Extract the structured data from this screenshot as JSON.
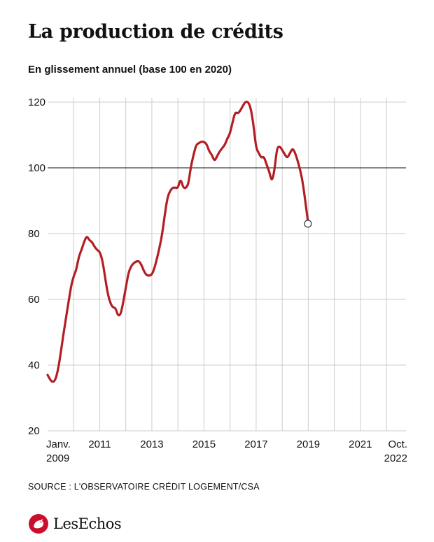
{
  "title": "La production de crédits",
  "subtitle": "En glissement annuel (base 100 en 2020)",
  "source": "SOURCE : L'OBSERVATOIRE CRÉDIT LOGEMENT/CSA",
  "brand": "LesEchos",
  "colors": {
    "line": "#b31e23",
    "grid": "#cccccc",
    "baseline": "#111111",
    "brand_red": "#c8102e"
  },
  "chart_data": {
    "type": "line",
    "title": "La production de crédits",
    "ylabel": "",
    "xlabel": "",
    "ylim": [
      20,
      120
    ],
    "xlim": [
      2009.0,
      2022.75
    ],
    "y_ticks": [
      20,
      40,
      60,
      80,
      100,
      120
    ],
    "reference_line": 100,
    "x_ticks": [
      {
        "x": 2009.0,
        "label": "Janv.",
        "label2": "2009"
      },
      {
        "x": 2011.0,
        "label": "2011",
        "label2": ""
      },
      {
        "x": 2013.0,
        "label": "2013",
        "label2": ""
      },
      {
        "x": 2015.0,
        "label": "2015",
        "label2": ""
      },
      {
        "x": 2017.0,
        "label": "2017",
        "label2": ""
      },
      {
        "x": 2019.0,
        "label": "2019",
        "label2": ""
      },
      {
        "x": 2021.0,
        "label": "2021",
        "label2": ""
      },
      {
        "x": 2022.75,
        "label": "Oct.",
        "label2": "2022"
      }
    ],
    "grid_x": [
      2010.0,
      2011.0,
      2012.0,
      2013.0,
      2014.0,
      2015.0,
      2016.0,
      2017.0,
      2018.0,
      2019.0,
      2020.0,
      2021.0,
      2022.0
    ],
    "series": [
      {
        "values": [
          [
            2009.0,
            37
          ],
          [
            2009.1,
            35.5
          ],
          [
            2009.2,
            34.7
          ],
          [
            2009.3,
            35.5
          ],
          [
            2009.4,
            38.5
          ],
          [
            2009.5,
            43.5
          ],
          [
            2009.6,
            49
          ],
          [
            2009.7,
            54
          ],
          [
            2009.8,
            59
          ],
          [
            2009.9,
            64
          ],
          [
            2010.0,
            67
          ],
          [
            2010.1,
            69
          ],
          [
            2010.2,
            73
          ],
          [
            2010.3,
            75
          ],
          [
            2010.4,
            77.5
          ],
          [
            2010.5,
            79.3
          ],
          [
            2010.6,
            78
          ],
          [
            2010.7,
            77.5
          ],
          [
            2010.8,
            76
          ],
          [
            2010.9,
            75
          ],
          [
            2011.0,
            74.5
          ],
          [
            2011.1,
            72
          ],
          [
            2011.2,
            67
          ],
          [
            2011.3,
            62
          ],
          [
            2011.4,
            59
          ],
          [
            2011.5,
            57.5
          ],
          [
            2011.6,
            57.5
          ],
          [
            2011.7,
            55
          ],
          [
            2011.8,
            55.3
          ],
          [
            2011.9,
            59
          ],
          [
            2012.0,
            63.5
          ],
          [
            2012.1,
            68
          ],
          [
            2012.2,
            70
          ],
          [
            2012.3,
            71
          ],
          [
            2012.4,
            71.5
          ],
          [
            2012.5,
            71.7
          ],
          [
            2012.6,
            70.5
          ],
          [
            2012.7,
            68.5
          ],
          [
            2012.8,
            67.3
          ],
          [
            2012.9,
            67.2
          ],
          [
            2013.0,
            67.5
          ],
          [
            2013.1,
            69.5
          ],
          [
            2013.2,
            72.5
          ],
          [
            2013.3,
            76
          ],
          [
            2013.4,
            80
          ],
          [
            2013.5,
            86
          ],
          [
            2013.6,
            91
          ],
          [
            2013.7,
            93
          ],
          [
            2013.8,
            94
          ],
          [
            2013.9,
            94
          ],
          [
            2014.0,
            93.8
          ],
          [
            2014.1,
            96.8
          ],
          [
            2014.2,
            94
          ],
          [
            2014.3,
            93.8
          ],
          [
            2014.4,
            95
          ],
          [
            2014.5,
            100.5
          ],
          [
            2014.6,
            104
          ],
          [
            2014.7,
            107
          ],
          [
            2014.8,
            107.5
          ],
          [
            2014.9,
            108
          ],
          [
            2015.0,
            107.9
          ],
          [
            2015.1,
            107.3
          ],
          [
            2015.2,
            105
          ],
          [
            2015.3,
            104
          ],
          [
            2015.4,
            102
          ],
          [
            2015.5,
            103.5
          ],
          [
            2015.6,
            105
          ],
          [
            2015.7,
            106
          ],
          [
            2015.8,
            107
          ],
          [
            2015.9,
            109
          ],
          [
            2016.0,
            110.5
          ],
          [
            2016.1,
            114
          ],
          [
            2016.2,
            117
          ],
          [
            2016.3,
            116.5
          ],
          [
            2016.4,
            117.5
          ],
          [
            2016.5,
            119
          ],
          [
            2016.6,
            120.2
          ],
          [
            2016.7,
            120
          ],
          [
            2016.8,
            118
          ],
          [
            2016.9,
            113
          ],
          [
            2017.0,
            106
          ],
          [
            2017.1,
            104.5
          ],
          [
            2017.2,
            103
          ],
          [
            2017.3,
            103.5
          ],
          [
            2017.4,
            101
          ],
          [
            2017.5,
            99
          ],
          [
            2017.6,
            95.7
          ],
          [
            2017.7,
            99
          ],
          [
            2017.8,
            106
          ],
          [
            2017.9,
            106.6
          ],
          [
            2018.0,
            105.5
          ],
          [
            2018.1,
            104
          ],
          [
            2018.2,
            103
          ],
          [
            2018.3,
            104.5
          ],
          [
            2018.4,
            106
          ],
          [
            2018.5,
            104.5
          ],
          [
            2018.6,
            102
          ],
          [
            2018.7,
            99
          ],
          [
            2018.8,
            95
          ],
          [
            2018.9,
            89
          ],
          [
            2019.0,
            83
          ]
        ]
      }
    ],
    "end_marker": {
      "x": 2019.0,
      "y": 83
    }
  }
}
